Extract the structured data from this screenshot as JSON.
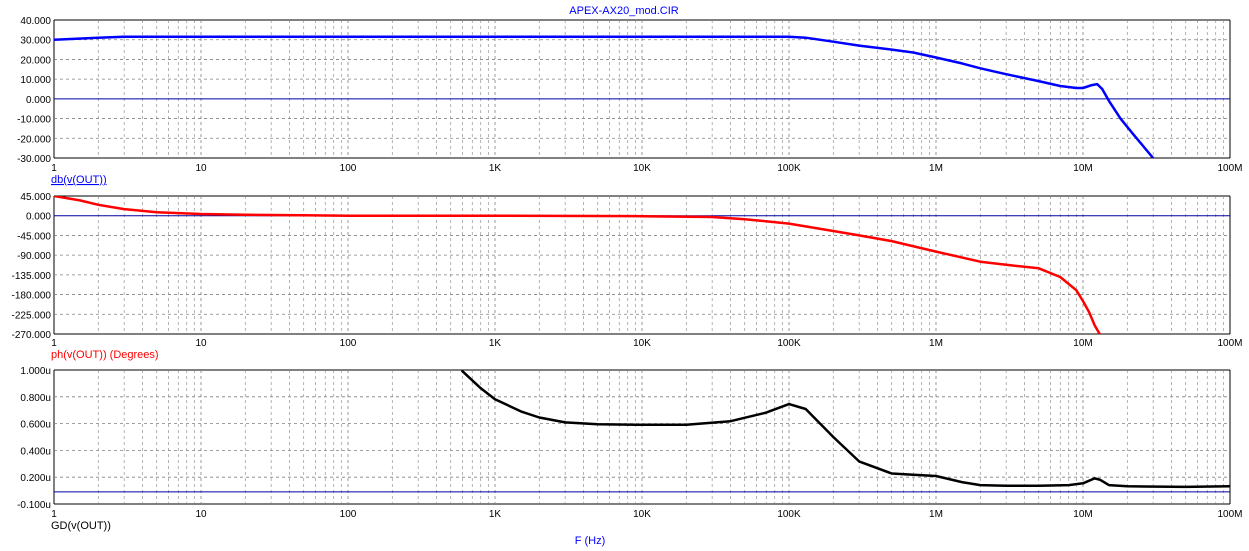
{
  "title": "APEX-AX20_mod.CIR",
  "x_axis_label": "F (Hz)",
  "colors": {
    "magnitude": "#0000ff",
    "phase": "#ff0000",
    "group_delay": "#000000",
    "axis_text": "#000000",
    "title_text": "#0000ff",
    "grid": "#808080",
    "zero_line": "#0000a0"
  },
  "chart_data": [
    {
      "type": "line",
      "name": "magnitude",
      "label": "db(v(OUT))",
      "xscale": "log",
      "xlim": [
        1,
        100000000
      ],
      "ylim": [
        -30,
        40
      ],
      "x_ticks": [
        "1",
        "10",
        "100",
        "1K",
        "10K",
        "100K",
        "1M",
        "10M",
        "100M"
      ],
      "y_ticks": [
        "40.000",
        "30.000",
        "20.000",
        "10.000",
        "0.000",
        "-10.000",
        "-20.000",
        "-30.000"
      ],
      "grid": true,
      "series": [
        {
          "x": [
            1,
            2,
            3,
            10,
            100,
            1000,
            10000,
            100000,
            130000,
            200000,
            300000,
            500000,
            700000,
            1000000,
            1500000,
            2000000,
            3000000,
            5000000,
            7000000,
            9000000,
            10000000,
            11500000,
            12500000,
            13500000,
            15000000,
            18000000,
            22000000,
            30000000
          ],
          "values": [
            30,
            31,
            31.5,
            31.5,
            31.5,
            31.5,
            31.5,
            31.5,
            31,
            29,
            27,
            25,
            23.5,
            21,
            18,
            15.5,
            12.5,
            9,
            6.5,
            5.5,
            5.5,
            7,
            7.5,
            5,
            -1,
            -10,
            -18,
            -30
          ]
        }
      ]
    },
    {
      "type": "line",
      "name": "phase",
      "label": "ph(v(OUT)) (Degrees)",
      "xscale": "log",
      "xlim": [
        1,
        100000000
      ],
      "ylim": [
        -270,
        45
      ],
      "x_ticks": [
        "1",
        "10",
        "100",
        "1K",
        "10K",
        "100K",
        "1M",
        "10M",
        "100M"
      ],
      "y_ticks": [
        "45.000",
        "0.000",
        "-45.000",
        "-90.000",
        "-135.000",
        "-180.000",
        "-225.000",
        "-270.000"
      ],
      "grid": true,
      "series": [
        {
          "x": [
            1,
            1.5,
            2,
            3,
            5,
            10,
            20,
            50,
            100,
            1000,
            10000,
            30000,
            50000,
            100000,
            200000,
            300000,
            500000,
            1000000,
            2000000,
            3000000,
            5000000,
            7000000,
            9000000,
            10000000,
            11000000,
            12000000,
            13000000
          ],
          "values": [
            45,
            35,
            25,
            15,
            8,
            4,
            2,
            1,
            0,
            0,
            -1,
            -3,
            -8,
            -18,
            -35,
            -45,
            -58,
            -82,
            -105,
            -112,
            -120,
            -140,
            -170,
            -195,
            -220,
            -250,
            -270
          ]
        }
      ]
    },
    {
      "type": "line",
      "name": "group_delay",
      "label": "GD(v(OUT))",
      "xscale": "log",
      "xlim": [
        1,
        100000000
      ],
      "ylim": [
        -0.1,
        1.0
      ],
      "x_ticks": [
        "1",
        "10",
        "100",
        "1K",
        "10K",
        "100K",
        "1M",
        "10M",
        "100M"
      ],
      "y_ticks": [
        "1.000u",
        "0.800u",
        "0.600u",
        "0.400u",
        "0.200u",
        "-0.100u"
      ],
      "grid": true,
      "series": [
        {
          "x": [
            600,
            800,
            1000,
            1500,
            2000,
            3000,
            5000,
            10000,
            20000,
            40000,
            70000,
            100000,
            130000,
            200000,
            300000,
            500000,
            700000,
            1000000,
            1500000,
            2000000,
            3000000,
            5000000,
            8000000,
            10000000,
            12000000,
            13000000,
            15000000,
            20000000,
            50000000,
            100000000
          ],
          "values": [
            0.99,
            0.85,
            0.76,
            0.66,
            0.61,
            0.57,
            0.555,
            0.55,
            0.55,
            0.58,
            0.65,
            0.72,
            0.68,
            0.45,
            0.25,
            0.15,
            0.14,
            0.13,
            0.08,
            0.055,
            0.05,
            0.05,
            0.055,
            0.07,
            0.11,
            0.1,
            0.055,
            0.045,
            0.04,
            0.045
          ]
        }
      ]
    }
  ]
}
